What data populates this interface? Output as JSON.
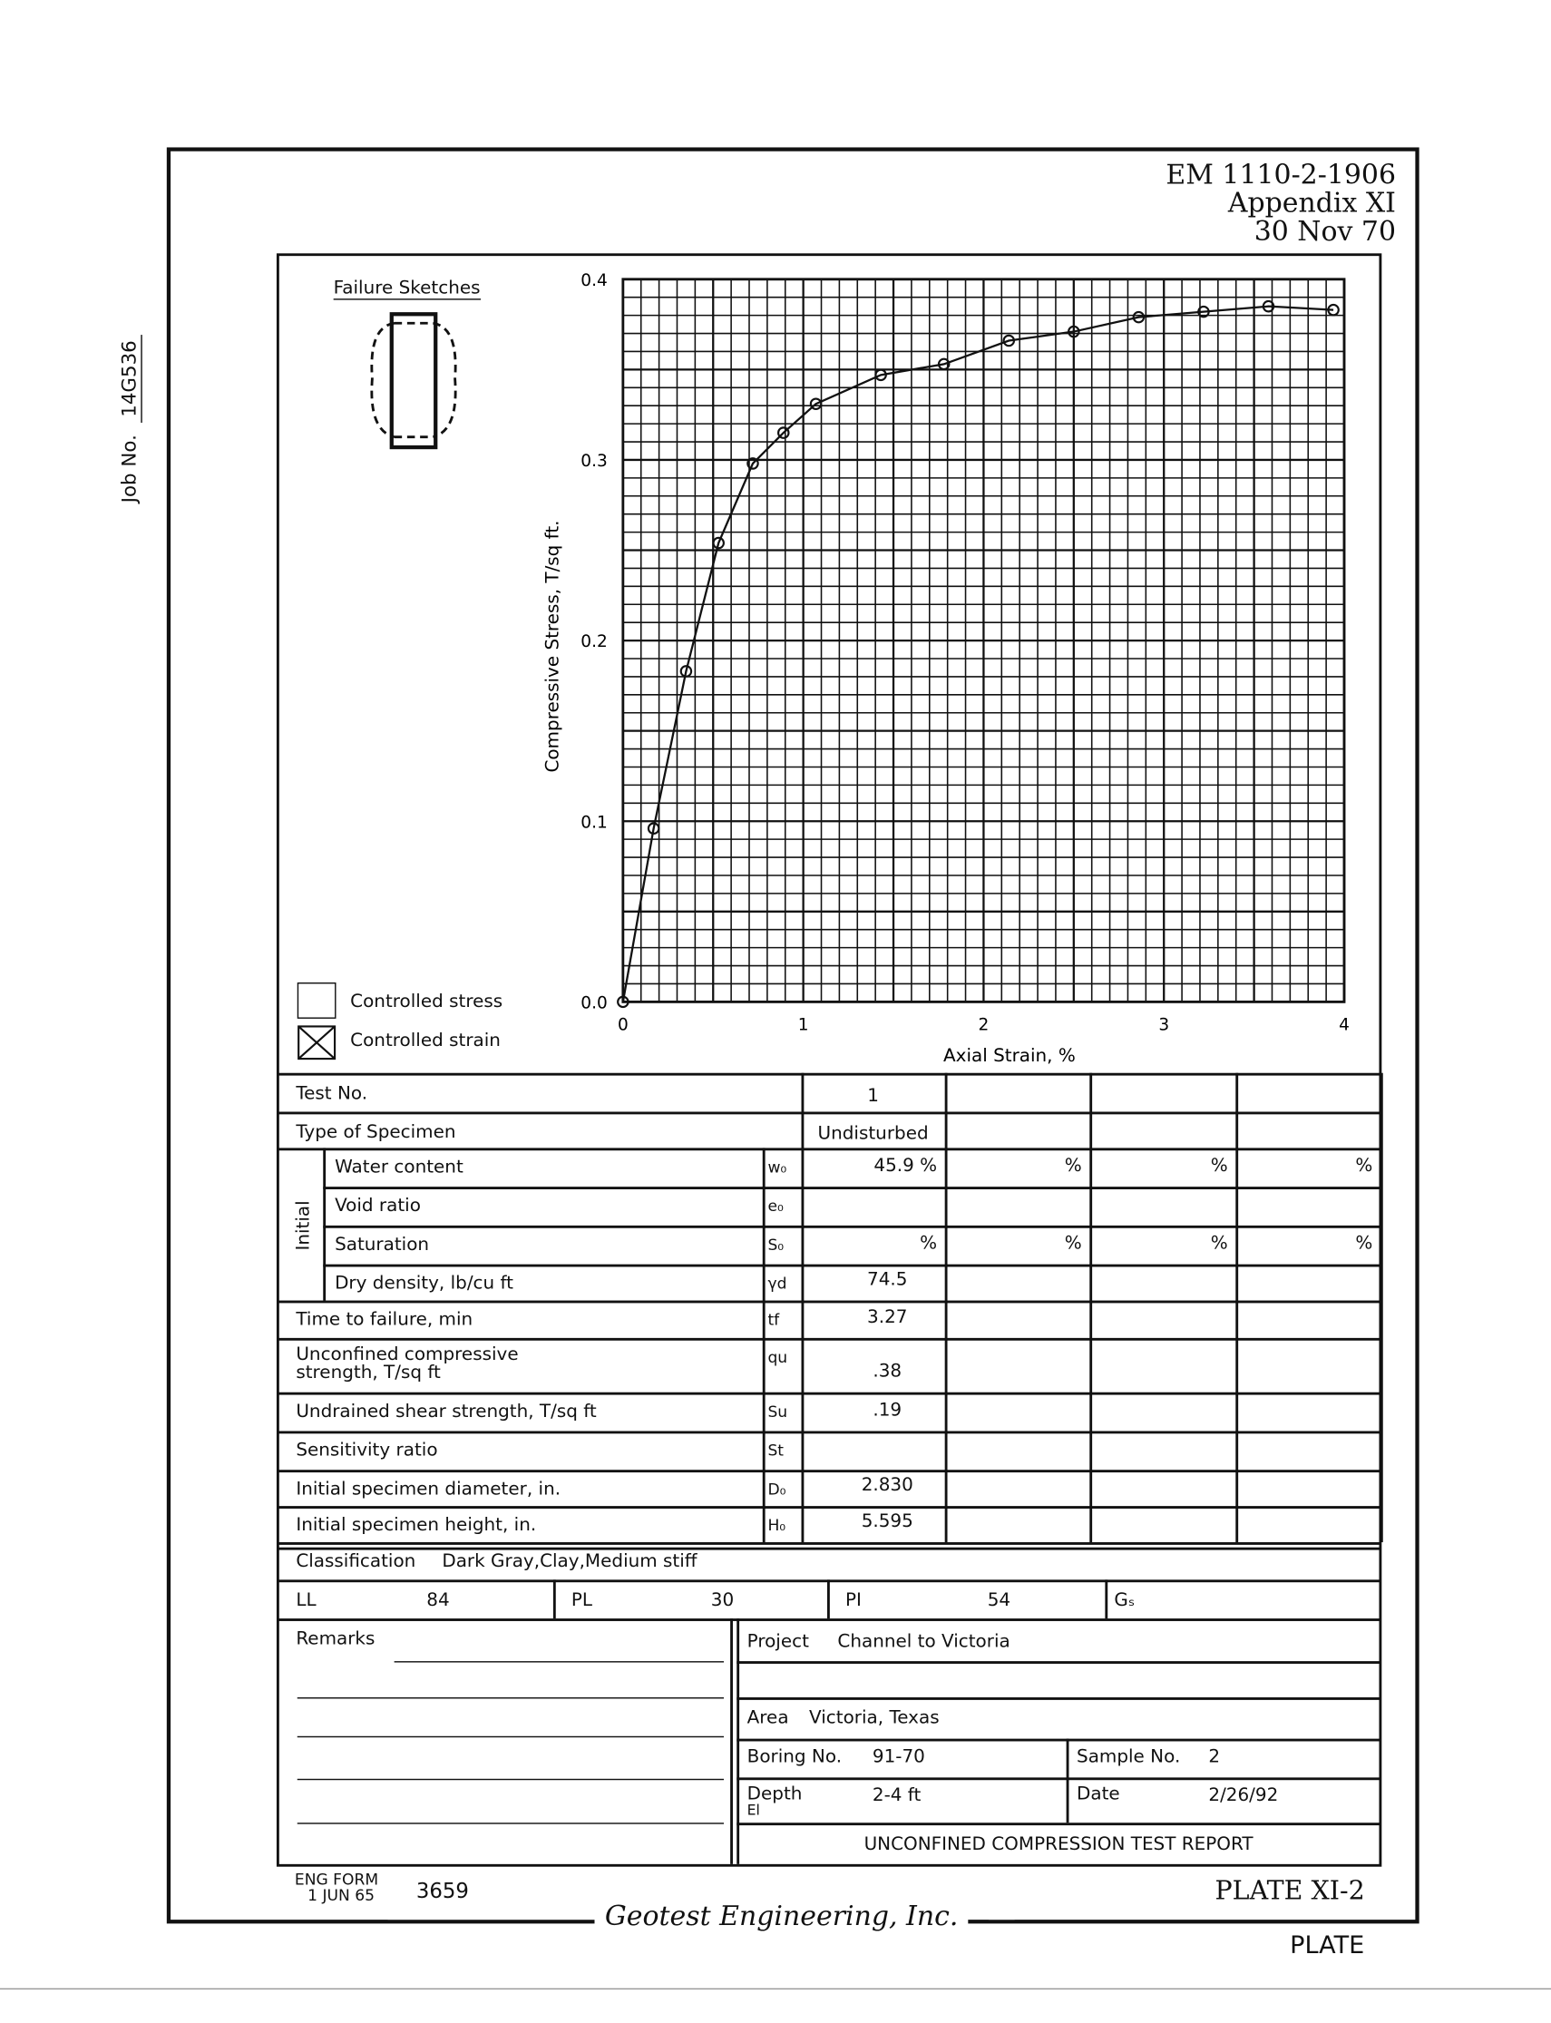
{
  "job": {
    "label": "Job No.",
    "value": "14G536"
  },
  "header": {
    "line1": "EM 1110-2-1906",
    "line2": "Appendix XI",
    "line3": "30 Nov 70"
  },
  "sketch": {
    "title": "Failure Sketches"
  },
  "legend": {
    "stress": "Controlled stress",
    "strain": "Controlled strain",
    "checked": "strain"
  },
  "chart_data": {
    "type": "line",
    "xlabel": "Axial Strain, %",
    "ylabel": "Compressive Stress, T/sq ft.",
    "xlim": [
      0,
      4
    ],
    "ylim": [
      0,
      0.4
    ],
    "xticks": [
      "0",
      "1",
      "2",
      "3",
      "4"
    ],
    "yticks": [
      "0.0",
      "0.1",
      "0.2",
      "0.3",
      "0.4"
    ],
    "grid": true,
    "x": [
      0,
      0.17,
      0.35,
      0.53,
      0.72,
      0.89,
      1.07,
      1.43,
      1.78,
      2.14,
      2.5,
      2.86,
      3.22,
      3.58,
      3.94
    ],
    "y": [
      0,
      0.096,
      0.183,
      0.254,
      0.298,
      0.315,
      0.331,
      0.347,
      0.353,
      0.366,
      0.371,
      0.379,
      0.382,
      0.385,
      0.383
    ]
  },
  "table": {
    "test_no": {
      "label": "Test No.",
      "values": [
        "1",
        "",
        "",
        ""
      ]
    },
    "type": {
      "label": "Type of Specimen",
      "values": [
        "Undisturbed",
        "",
        "",
        ""
      ]
    },
    "initial_label": "Initial",
    "rows": [
      {
        "label": "Water content",
        "sym": "w₀",
        "values": [
          "45.9 %",
          "%",
          "%",
          "%"
        ]
      },
      {
        "label": "Void ratio",
        "sym": "e₀",
        "values": [
          "",
          "",
          "",
          ""
        ]
      },
      {
        "label": "Saturation",
        "sym": "S₀",
        "values": [
          "%",
          "%",
          "%",
          "%"
        ]
      },
      {
        "label": "Dry density, lb/cu ft",
        "sym": "γd",
        "values": [
          "74.5",
          "",
          "",
          ""
        ]
      },
      {
        "label": "Time to failure, min",
        "sym": "tf",
        "values": [
          "3.27",
          "",
          "",
          ""
        ]
      },
      {
        "label": "Unconfined compressive\nstrength, T/sq ft",
        "sym": "qu",
        "values": [
          ".38",
          "",
          "",
          ""
        ]
      },
      {
        "label": "Undrained shear strength, T/sq ft",
        "sym": "Su",
        "values": [
          ".19",
          "",
          "",
          ""
        ]
      },
      {
        "label": "Sensitivity ratio",
        "sym": "St",
        "values": [
          "",
          "",
          "",
          ""
        ]
      },
      {
        "label": "Initial specimen diameter, in.",
        "sym": "D₀",
        "values": [
          "2.830",
          "",
          "",
          ""
        ]
      },
      {
        "label": "Initial specimen height, in.",
        "sym": "H₀",
        "values": [
          "5.595",
          "",
          "",
          ""
        ]
      }
    ],
    "classification": {
      "label": "Classification",
      "value": "Dark Gray,Clay,Medium stiff"
    },
    "ll": {
      "label": "LL",
      "value": "84"
    },
    "pl": {
      "label": "PL",
      "value": "30"
    },
    "pi": {
      "label": "PI",
      "value": "54"
    },
    "gs": {
      "label": "Gₛ",
      "value": ""
    }
  },
  "remarks": {
    "label": "Remarks"
  },
  "project": {
    "label": "Project",
    "value": "Channel to Victoria"
  },
  "area": {
    "label": "Area",
    "value": "Victoria, Texas"
  },
  "boring": {
    "label": "Boring No.",
    "value": "91-70"
  },
  "sample": {
    "label": "Sample No.",
    "value": "2"
  },
  "depth": {
    "label": "Depth",
    "sub": "El",
    "value": "2-4 ft"
  },
  "date": {
    "label": "Date",
    "value": "2/26/92"
  },
  "report_title": "UNCONFINED COMPRESSION TEST REPORT",
  "footer": {
    "form": "ENG FORM",
    "form_date": "1 JUN 65",
    "form_no": "3659",
    "plate": "PLATE XI-2",
    "company": "Geotest Engineering, Inc.",
    "plate2": "PLATE"
  }
}
